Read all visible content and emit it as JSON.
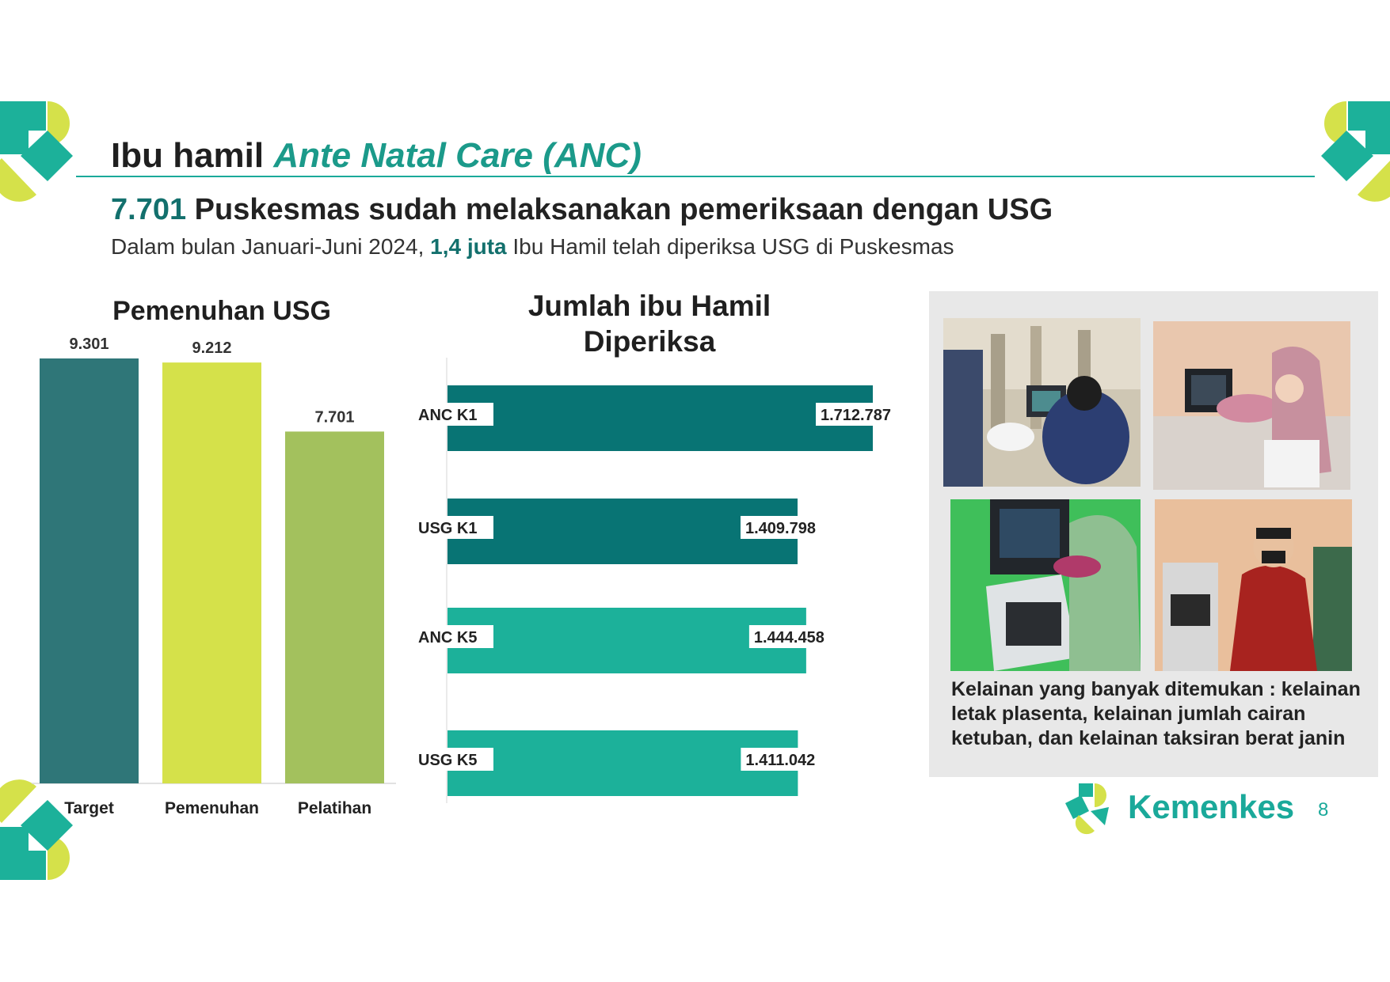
{
  "header": {
    "title_prefix": "Ibu hamil",
    "title_accent": "Ante Natal Care (ANC)",
    "headline_number": "7.701",
    "headline_text": "Puskesmas sudah melaksanakan pemeriksaan dengan USG",
    "sub_prefix": "Dalam bulan Januari-Juni 2024,",
    "sub_strong": "1,4 juta",
    "sub_suffix": "Ibu Hamil telah diperiksa USG di Puskesmas"
  },
  "colors": {
    "teal_dark": "#2f7678",
    "lime": "#d5e14a",
    "olive_green": "#a3c15d",
    "teal_bar": "#087474",
    "teal_light": "#1cb19a",
    "brand": "#1aa99a"
  },
  "chart_data": [
    {
      "type": "bar",
      "title": "Pemenuhan USG",
      "categories": [
        "Target",
        "Pemenuhan",
        "Pelatihan"
      ],
      "values": [
        9301,
        9212,
        7701
      ],
      "value_labels": [
        "9.301",
        "9.212",
        "7.701"
      ],
      "bar_colors": [
        "#2f7678",
        "#d5e14a",
        "#a3c15d"
      ],
      "ylim": [
        0,
        9301
      ],
      "xlabel": "",
      "ylabel": ""
    },
    {
      "type": "bar",
      "orientation": "horizontal",
      "title_line1": "Jumlah ibu Hamil",
      "title_line2": "Diperiksa",
      "categories": [
        "ANC K1",
        "USG K1",
        "ANC K5",
        "USG K5"
      ],
      "values": [
        1712787,
        1409798,
        1444458,
        1411042
      ],
      "value_labels": [
        "1.712.787",
        "1.409.798",
        "1.444.458",
        "1.411.042"
      ],
      "bar_colors": [
        "#087474",
        "#087474",
        "#1cb19a",
        "#1cb19a"
      ],
      "xlim": [
        0,
        1712787
      ]
    }
  ],
  "findings": {
    "text": "Kelainan yang banyak ditemukan : kelainan letak plasenta, kelainan jumlah cairan ketuban, dan kelainan taksiran berat janin"
  },
  "footer": {
    "brand": "Kemenkes",
    "page_number": "8"
  }
}
